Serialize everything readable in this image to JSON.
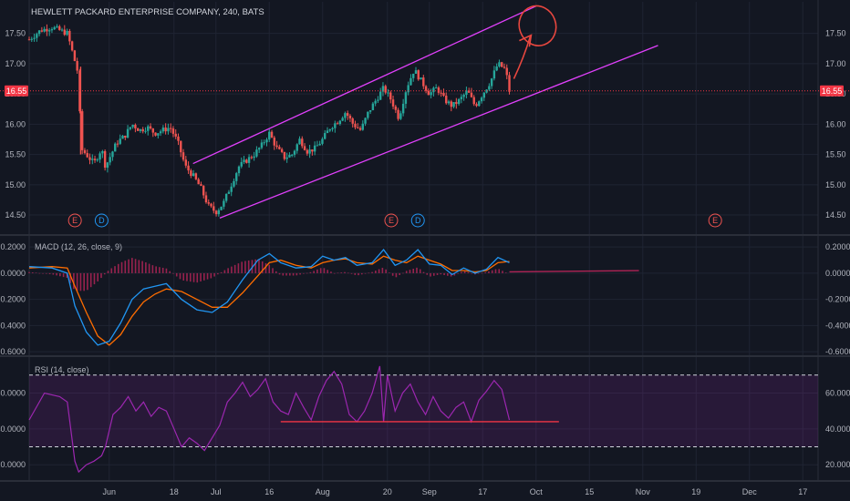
{
  "header": {
    "title": "HEWLETT PACKARD ENTERPRISE COMPANY, 240, BATS"
  },
  "price_label": "16.55",
  "macd_label": "MACD (12, 26, close, 9)",
  "rsi_label": "RSI (14, close)",
  "event_markers": [
    {
      "letter": "E",
      "day": 12,
      "kind": "earnings"
    },
    {
      "letter": "D",
      "day": 19,
      "kind": "dividend"
    },
    {
      "letter": "E",
      "day": 95,
      "kind": "earnings"
    },
    {
      "letter": "D",
      "day": 102,
      "kind": "dividend"
    },
    {
      "letter": "E",
      "day": 180,
      "kind": "earnings"
    }
  ],
  "colors": {
    "background": "#131722",
    "up": "#26a69a",
    "down": "#ef5350",
    "channel": "#e040fb",
    "macd": "#2196f3",
    "signal": "#ff6d00",
    "rsi": "#9c27b0",
    "price_line": "#f23645",
    "annotation": "#e8473f"
  },
  "chart_data": [
    {
      "type": "candlestick",
      "title": "HEWLETT PACKARD ENTERPRISE COMPANY, 240, BATS",
      "x_tick_labels": [
        "Jun",
        "18",
        "Jul",
        "16",
        "Aug",
        "20",
        "Sep",
        "17",
        "Oct",
        "15",
        "Nov",
        "19",
        "Dec",
        "17"
      ],
      "x_tick_days": [
        21,
        38,
        49,
        63,
        77,
        94,
        105,
        119,
        133,
        147,
        161,
        175,
        189,
        203
      ],
      "y_ticks": [
        14.5,
        15.0,
        15.5,
        16.0,
        16.5,
        17.0,
        17.5
      ],
      "ylim": [
        14.2,
        17.75
      ],
      "current_price": 16.55,
      "trend_channel": {
        "lower": [
          [
            50,
            14.45
          ],
          [
            165,
            17.3
          ]
        ],
        "upper": [
          [
            43,
            15.35
          ],
          [
            133,
            17.95
          ]
        ]
      },
      "close_points": [
        [
          0,
          17.4
        ],
        [
          3,
          17.55
        ],
        [
          6,
          17.6
        ],
        [
          8,
          17.55
        ],
        [
          10,
          17.5
        ],
        [
          13,
          16.8
        ],
        [
          13.5,
          15.6
        ],
        [
          15,
          15.5
        ],
        [
          17,
          15.35
        ],
        [
          19,
          15.6
        ],
        [
          20,
          15.3
        ],
        [
          23,
          15.7
        ],
        [
          25,
          15.8
        ],
        [
          27,
          16.0
        ],
        [
          29,
          15.9
        ],
        [
          31,
          15.95
        ],
        [
          33,
          15.85
        ],
        [
          35,
          15.9
        ],
        [
          37,
          15.95
        ],
        [
          39,
          15.7
        ],
        [
          41,
          15.3
        ],
        [
          43,
          15.15
        ],
        [
          45,
          14.95
        ],
        [
          47,
          14.65
        ],
        [
          49,
          14.55
        ],
        [
          51,
          14.7
        ],
        [
          53,
          15.0
        ],
        [
          55,
          15.3
        ],
        [
          57,
          15.4
        ],
        [
          59,
          15.5
        ],
        [
          61,
          15.65
        ],
        [
          63,
          15.85
        ],
        [
          65,
          15.6
        ],
        [
          67,
          15.45
        ],
        [
          69,
          15.5
        ],
        [
          71,
          15.75
        ],
        [
          73,
          15.55
        ],
        [
          75,
          15.6
        ],
        [
          77,
          15.75
        ],
        [
          79,
          15.95
        ],
        [
          81,
          16.05
        ],
        [
          83,
          16.2
        ],
        [
          85,
          16.0
        ],
        [
          87,
          15.9
        ],
        [
          89,
          16.2
        ],
        [
          91,
          16.4
        ],
        [
          93,
          16.6
        ],
        [
          95,
          16.4
        ],
        [
          97,
          16.1
        ],
        [
          99,
          16.6
        ],
        [
          101,
          16.9
        ],
        [
          103,
          16.7
        ],
        [
          105,
          16.5
        ],
        [
          107,
          16.6
        ],
        [
          109,
          16.4
        ],
        [
          111,
          16.3
        ],
        [
          113,
          16.4
        ],
        [
          115,
          16.55
        ],
        [
          117,
          16.3
        ],
        [
          119,
          16.5
        ],
        [
          121,
          16.7
        ],
        [
          123,
          17.0
        ],
        [
          125,
          16.9
        ],
        [
          126,
          16.55
        ]
      ]
    },
    {
      "type": "line",
      "title": "MACD (12, 26, close, 9)",
      "y_ticks": [
        -0.6,
        -0.4,
        -0.2,
        0.0,
        0.2
      ],
      "ylim": [
        -0.62,
        0.25
      ],
      "series": [
        {
          "values": [
            [
              0,
              0.05
            ],
            [
              6,
              0.04
            ],
            [
              10,
              0.0
            ],
            [
              12,
              -0.25
            ],
            [
              15,
              -0.45
            ],
            [
              18,
              -0.55
            ],
            [
              21,
              -0.52
            ],
            [
              24,
              -0.38
            ],
            [
              27,
              -0.2
            ],
            [
              30,
              -0.12
            ],
            [
              33,
              -0.1
            ],
            [
              36,
              -0.08
            ],
            [
              40,
              -0.2
            ],
            [
              44,
              -0.28
            ],
            [
              48,
              -0.3
            ],
            [
              52,
              -0.22
            ],
            [
              56,
              -0.05
            ],
            [
              60,
              0.1
            ],
            [
              63,
              0.15
            ],
            [
              66,
              0.08
            ],
            [
              70,
              0.04
            ],
            [
              74,
              0.05
            ],
            [
              77,
              0.13
            ],
            [
              80,
              0.1
            ],
            [
              83,
              0.12
            ],
            [
              86,
              0.06
            ],
            [
              90,
              0.08
            ],
            [
              93,
              0.18
            ],
            [
              96,
              0.06
            ],
            [
              99,
              0.1
            ],
            [
              102,
              0.18
            ],
            [
              105,
              0.07
            ],
            [
              108,
              0.06
            ],
            [
              111,
              -0.01
            ],
            [
              114,
              0.04
            ],
            [
              117,
              0.0
            ],
            [
              120,
              0.03
            ],
            [
              123,
              0.12
            ],
            [
              126,
              0.08
            ]
          ]
        },
        {
          "values": [
            [
              0,
              0.04
            ],
            [
              6,
              0.05
            ],
            [
              10,
              0.04
            ],
            [
              12,
              -0.1
            ],
            [
              15,
              -0.3
            ],
            [
              18,
              -0.48
            ],
            [
              21,
              -0.55
            ],
            [
              24,
              -0.47
            ],
            [
              27,
              -0.33
            ],
            [
              30,
              -0.22
            ],
            [
              33,
              -0.16
            ],
            [
              36,
              -0.12
            ],
            [
              40,
              -0.14
            ],
            [
              44,
              -0.2
            ],
            [
              48,
              -0.26
            ],
            [
              52,
              -0.26
            ],
            [
              56,
              -0.15
            ],
            [
              60,
              -0.02
            ],
            [
              63,
              0.08
            ],
            [
              66,
              0.1
            ],
            [
              70,
              0.06
            ],
            [
              74,
              0.04
            ],
            [
              77,
              0.08
            ],
            [
              80,
              0.1
            ],
            [
              83,
              0.11
            ],
            [
              86,
              0.08
            ],
            [
              90,
              0.07
            ],
            [
              93,
              0.13
            ],
            [
              96,
              0.1
            ],
            [
              99,
              0.08
            ],
            [
              102,
              0.13
            ],
            [
              105,
              0.1
            ],
            [
              108,
              0.07
            ],
            [
              111,
              0.02
            ],
            [
              114,
              0.02
            ],
            [
              117,
              0.01
            ],
            [
              120,
              0.02
            ],
            [
              123,
              0.08
            ],
            [
              126,
              0.09
            ]
          ]
        }
      ]
    },
    {
      "type": "line",
      "title": "RSI (14, close)",
      "y_ticks": [
        20,
        40,
        60
      ],
      "ylim": [
        12,
        78
      ],
      "bands": [
        30,
        70
      ],
      "support_level": 44,
      "series": [
        {
          "values": [
            [
              0,
              45
            ],
            [
              4,
              60
            ],
            [
              8,
              58
            ],
            [
              10,
              55
            ],
            [
              12,
              22
            ],
            [
              13,
              16
            ],
            [
              15,
              20
            ],
            [
              17,
              22
            ],
            [
              19,
              25
            ],
            [
              20,
              30
            ],
            [
              22,
              48
            ],
            [
              24,
              52
            ],
            [
              26,
              58
            ],
            [
              28,
              50
            ],
            [
              30,
              55
            ],
            [
              32,
              47
            ],
            [
              34,
              52
            ],
            [
              36,
              50
            ],
            [
              38,
              40
            ],
            [
              40,
              30
            ],
            [
              42,
              35
            ],
            [
              44,
              32
            ],
            [
              46,
              28
            ],
            [
              48,
              35
            ],
            [
              50,
              42
            ],
            [
              52,
              55
            ],
            [
              54,
              60
            ],
            [
              56,
              66
            ],
            [
              58,
              58
            ],
            [
              60,
              62
            ],
            [
              62,
              68
            ],
            [
              64,
              55
            ],
            [
              66,
              50
            ],
            [
              68,
              48
            ],
            [
              70,
              60
            ],
            [
              72,
              52
            ],
            [
              74,
              45
            ],
            [
              76,
              58
            ],
            [
              78,
              67
            ],
            [
              80,
              72
            ],
            [
              82,
              65
            ],
            [
              84,
              48
            ],
            [
              86,
              44
            ],
            [
              88,
              50
            ],
            [
              90,
              60
            ],
            [
              92,
              75
            ],
            [
              93,
              44
            ],
            [
              94,
              70
            ],
            [
              96,
              50
            ],
            [
              98,
              60
            ],
            [
              100,
              65
            ],
            [
              102,
              55
            ],
            [
              104,
              48
            ],
            [
              106,
              58
            ],
            [
              108,
              50
            ],
            [
              110,
              46
            ],
            [
              112,
              52
            ],
            [
              114,
              55
            ],
            [
              116,
              44
            ],
            [
              118,
              56
            ],
            [
              120,
              61
            ],
            [
              122,
              67
            ],
            [
              124,
              62
            ],
            [
              126,
              45
            ]
          ]
        }
      ]
    }
  ]
}
